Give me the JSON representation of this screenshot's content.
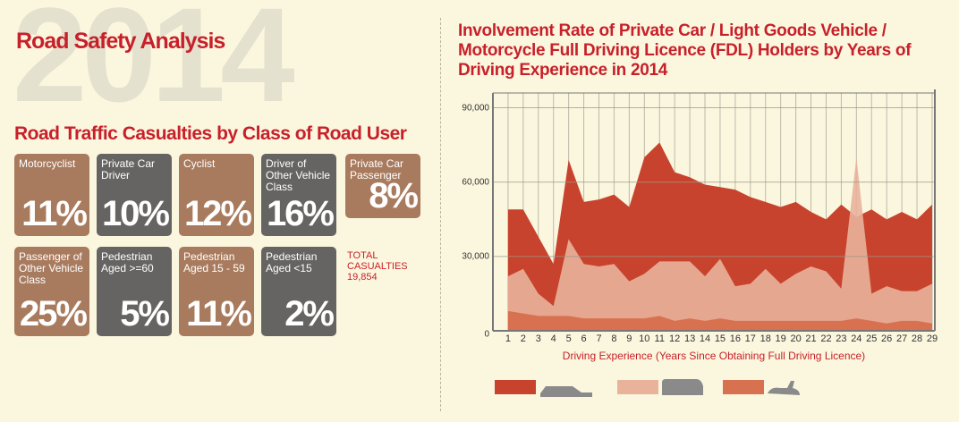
{
  "infographic": {
    "watermark": "2014",
    "title": "Road Safety Analysis",
    "subtitle": "Road Traffic Casualties by Class of Road User",
    "tiles": [
      {
        "label": "Motorcyclist",
        "percent": "11%"
      },
      {
        "label": "Private Car Driver",
        "percent": "10%"
      },
      {
        "label": "Cyclist",
        "percent": "12%"
      },
      {
        "label": "Driver of Other Vehicle Class",
        "percent": "16%"
      },
      {
        "label": "Private Car Passenger",
        "percent": "8%"
      },
      {
        "label": "Passenger of Other Vehicle Class",
        "percent": "25%"
      },
      {
        "label": "Pedestrian Aged >=60",
        "percent": "5%"
      },
      {
        "label": "Pedestrian Aged 15 - 59",
        "percent": "11%"
      },
      {
        "label": "Pedestrian Aged <15",
        "percent": "2%"
      }
    ],
    "total_label": "TOTAL CASUALTIES",
    "total": "19,854"
  },
  "chart_data": {
    "type": "area",
    "title": "Involvement Rate of Private Car / Light Goods Vehicle / Motorcycle Full Driving Licence (FDL) Holders by Years of Driving Experience in 2014",
    "x_label": "Driving Experience (Years Since Obtaining Full Driving Licence)",
    "categories": [
      "1",
      "2",
      "3",
      "4",
      "5",
      "6",
      "7",
      "8",
      "9",
      "10",
      "11",
      "12",
      "13",
      "14",
      "15",
      "16",
      "17",
      "18",
      "19",
      "20",
      "21",
      "22",
      "23",
      "24",
      "25",
      "26",
      "27",
      "28",
      "29"
    ],
    "series": [
      {
        "color": "#c8432d",
        "values": [
          49000,
          49000,
          38000,
          27000,
          69000,
          52000,
          53000,
          55000,
          50000,
          70000,
          76000,
          64000,
          62000,
          59000,
          58000,
          57000,
          54000,
          52000,
          50000,
          52000,
          48000,
          45000,
          51000,
          46000,
          49000,
          45000,
          48000,
          45000,
          51000
        ]
      },
      {
        "color": "#e9b39b",
        "values": [
          22000,
          25000,
          15000,
          10000,
          37000,
          27000,
          26000,
          27000,
          20000,
          23000,
          28000,
          28000,
          28000,
          22000,
          29000,
          18000,
          19000,
          25000,
          19000,
          23000,
          26000,
          24000,
          17000,
          70000,
          15000,
          18000,
          16000,
          16000,
          19000
        ]
      },
      {
        "color": "#d8714f",
        "values": [
          8000,
          7000,
          6000,
          6000,
          6000,
          5000,
          5000,
          5000,
          5000,
          5000,
          6000,
          4000,
          5000,
          4000,
          5000,
          4000,
          4000,
          4000,
          4000,
          4000,
          4000,
          4000,
          4000,
          5000,
          4000,
          3000,
          4000,
          4000,
          3000
        ]
      }
    ],
    "ylim": [
      0,
      96000
    ],
    "yticks": [
      0,
      {
        "value": 30000,
        "label": "30,000"
      },
      {
        "value": 60000,
        "label": "60,000"
      },
      {
        "value": 90000,
        "label": "90,000"
      }
    ],
    "grid": true
  }
}
